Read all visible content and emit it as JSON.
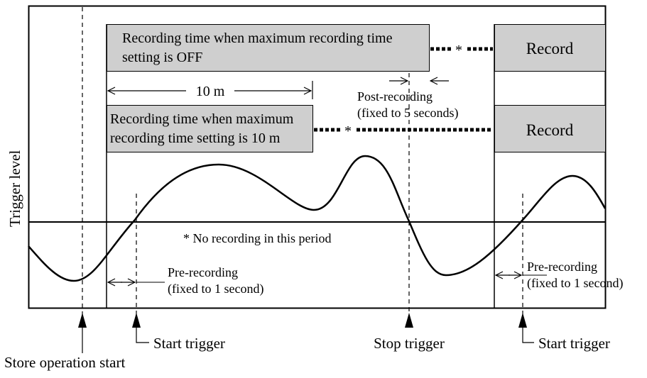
{
  "diagram": {
    "y_axis_label": "Trigger level",
    "box_off_line1": "Recording time when maximum recording time",
    "box_off_line2": "setting is OFF",
    "box_10m_line1": "Recording time when maximum",
    "box_10m_line2": "recording time setting is 10 m",
    "record_label_1": "Record",
    "record_label_2": "Record",
    "asterisk_1": "*",
    "asterisk_2": "*",
    "dimension_10m": "10 m",
    "post_recording_line1": "Post-recording",
    "post_recording_line2": "(fixed to 5 seconds)",
    "no_recording_note": "* No recording in this period",
    "pre_recording_1_line1": "Pre-recording",
    "pre_recording_1_line2": "(fixed to 1 second)",
    "pre_recording_2_line1": "Pre-recording",
    "pre_recording_2_line2": "(fixed to 1 second)",
    "start_trigger_1": "Start trigger",
    "stop_trigger": "Stop trigger",
    "start_trigger_2": "Start trigger",
    "store_operation_start": "Store operation start"
  },
  "colors": {
    "box_fill": "#cfcfcf",
    "stroke": "#000000",
    "background": "#ffffff"
  }
}
